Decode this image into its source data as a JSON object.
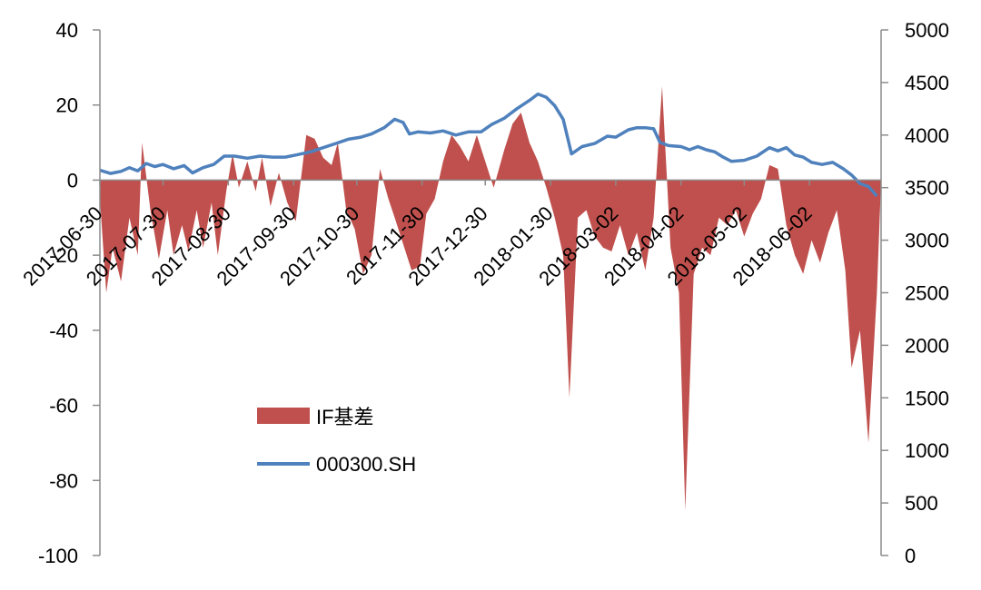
{
  "chart_data": {
    "type": "area",
    "legend": [
      {
        "name": "IF基差",
        "type": "area",
        "color": "#C0504D"
      },
      {
        "name": "000300.SH",
        "type": "line",
        "color": "#4F81BD"
      }
    ],
    "legend_position": "center-left inside plot",
    "y_left": {
      "min": -100,
      "max": 40,
      "ticks": [
        "40",
        "20",
        "0",
        "-20",
        "-40",
        "-60",
        "-80",
        "-100"
      ]
    },
    "y_right": {
      "min": 0,
      "max": 5000,
      "ticks": [
        "5000",
        "4500",
        "4000",
        "3500",
        "3000",
        "2500",
        "2000",
        "1500",
        "1000",
        "500",
        "0"
      ]
    },
    "x_ticks": [
      "2017-06-30",
      "2017-07-30",
      "2017-08-30",
      "2017-09-30",
      "2017-10-30",
      "2017-11-30",
      "2017-12-30",
      "2018-01-30",
      "2018-03-02",
      "2018-04-02",
      "2018-05-02",
      "2018-06-02"
    ],
    "x_range": {
      "start": "2017-06-30",
      "end": "2018-07-06"
    },
    "series": [
      {
        "name": "IF基差",
        "color": "#C0504D",
        "points": [
          [
            "2017-06-30",
            -5
          ],
          [
            "2017-07-03",
            -30
          ],
          [
            "2017-07-06",
            -18
          ],
          [
            "2017-07-10",
            -27
          ],
          [
            "2017-07-14",
            -10
          ],
          [
            "2017-07-18",
            -20
          ],
          [
            "2017-07-20",
            10
          ],
          [
            "2017-07-24",
            -8
          ],
          [
            "2017-07-28",
            -21
          ],
          [
            "2017-08-01",
            -8
          ],
          [
            "2017-08-04",
            -20
          ],
          [
            "2017-08-08",
            -12
          ],
          [
            "2017-08-11",
            -19
          ],
          [
            "2017-08-15",
            -8
          ],
          [
            "2017-08-18",
            -18
          ],
          [
            "2017-08-22",
            -6
          ],
          [
            "2017-08-25",
            -20
          ],
          [
            "2017-08-29",
            -3
          ],
          [
            "2017-09-01",
            7
          ],
          [
            "2017-09-04",
            -2
          ],
          [
            "2017-09-08",
            5
          ],
          [
            "2017-09-12",
            -3
          ],
          [
            "2017-09-15",
            6
          ],
          [
            "2017-09-19",
            -7
          ],
          [
            "2017-09-23",
            2
          ],
          [
            "2017-09-27",
            -6
          ],
          [
            "2017-10-01",
            -11
          ],
          [
            "2017-10-06",
            12
          ],
          [
            "2017-10-10",
            11
          ],
          [
            "2017-10-14",
            6
          ],
          [
            "2017-10-18",
            4
          ],
          [
            "2017-10-21",
            10
          ],
          [
            "2017-10-25",
            -8
          ],
          [
            "2017-10-29",
            -13
          ],
          [
            "2017-11-02",
            -25
          ],
          [
            "2017-11-06",
            -20
          ],
          [
            "2017-11-10",
            3
          ],
          [
            "2017-11-14",
            -5
          ],
          [
            "2017-11-17",
            -10
          ],
          [
            "2017-11-21",
            -17
          ],
          [
            "2017-11-25",
            -24
          ],
          [
            "2017-11-29",
            -23
          ],
          [
            "2017-12-02",
            -9
          ],
          [
            "2017-12-06",
            -5
          ],
          [
            "2017-12-10",
            5
          ],
          [
            "2017-12-14",
            12
          ],
          [
            "2017-12-18",
            9
          ],
          [
            "2017-12-22",
            5
          ],
          [
            "2017-12-26",
            12
          ],
          [
            "2017-12-30",
            5
          ],
          [
            "2018-01-03",
            -2
          ],
          [
            "2018-01-08",
            8
          ],
          [
            "2018-01-12",
            15
          ],
          [
            "2018-01-16",
            18
          ],
          [
            "2018-01-20",
            10
          ],
          [
            "2018-01-24",
            5
          ],
          [
            "2018-01-28",
            -2
          ],
          [
            "2018-02-01",
            -10
          ],
          [
            "2018-02-05",
            -20
          ],
          [
            "2018-02-08",
            -58
          ],
          [
            "2018-02-12",
            -10
          ],
          [
            "2018-02-16",
            -8
          ],
          [
            "2018-02-20",
            -15
          ],
          [
            "2018-02-24",
            -18
          ],
          [
            "2018-02-28",
            -19
          ],
          [
            "2018-03-04",
            -12
          ],
          [
            "2018-03-08",
            -20
          ],
          [
            "2018-03-12",
            -14
          ],
          [
            "2018-03-16",
            -24
          ],
          [
            "2018-03-20",
            -10
          ],
          [
            "2018-03-24",
            25
          ],
          [
            "2018-03-28",
            -18
          ],
          [
            "2018-04-01",
            -30
          ],
          [
            "2018-04-04",
            -88
          ],
          [
            "2018-04-08",
            -25
          ],
          [
            "2018-04-12",
            -18
          ],
          [
            "2018-04-16",
            -20
          ],
          [
            "2018-04-20",
            -10
          ],
          [
            "2018-04-24",
            -12
          ],
          [
            "2018-04-28",
            -8
          ],
          [
            "2018-05-02",
            -15
          ],
          [
            "2018-05-06",
            -9
          ],
          [
            "2018-05-10",
            -5
          ],
          [
            "2018-05-14",
            4
          ],
          [
            "2018-05-18",
            3
          ],
          [
            "2018-05-22",
            -12
          ],
          [
            "2018-05-26",
            -20
          ],
          [
            "2018-05-30",
            -25
          ],
          [
            "2018-06-03",
            -16
          ],
          [
            "2018-06-07",
            -22
          ],
          [
            "2018-06-11",
            -14
          ],
          [
            "2018-06-15",
            -8
          ],
          [
            "2018-06-19",
            -24
          ],
          [
            "2018-06-22",
            -50
          ],
          [
            "2018-06-26",
            -40
          ],
          [
            "2018-06-30",
            -70
          ],
          [
            "2018-07-04",
            -30
          ],
          [
            "2018-07-06",
            0
          ]
        ]
      },
      {
        "name": "000300.SH",
        "color": "#4F81BD",
        "points": [
          [
            "2017-06-30",
            3665
          ],
          [
            "2017-07-05",
            3635
          ],
          [
            "2017-07-10",
            3655
          ],
          [
            "2017-07-14",
            3690
          ],
          [
            "2017-07-18",
            3660
          ],
          [
            "2017-07-22",
            3730
          ],
          [
            "2017-07-26",
            3700
          ],
          [
            "2017-07-30",
            3720
          ],
          [
            "2017-08-04",
            3680
          ],
          [
            "2017-08-09",
            3710
          ],
          [
            "2017-08-13",
            3640
          ],
          [
            "2017-08-18",
            3690
          ],
          [
            "2017-08-23",
            3720
          ],
          [
            "2017-08-28",
            3800
          ],
          [
            "2017-09-02",
            3800
          ],
          [
            "2017-09-08",
            3780
          ],
          [
            "2017-09-14",
            3800
          ],
          [
            "2017-09-20",
            3790
          ],
          [
            "2017-09-26",
            3790
          ],
          [
            "2017-10-01",
            3810
          ],
          [
            "2017-10-08",
            3840
          ],
          [
            "2017-10-14",
            3880
          ],
          [
            "2017-10-20",
            3920
          ],
          [
            "2017-10-26",
            3960
          ],
          [
            "2017-11-01",
            3980
          ],
          [
            "2017-11-06",
            4010
          ],
          [
            "2017-11-12",
            4070
          ],
          [
            "2017-11-17",
            4150
          ],
          [
            "2017-11-21",
            4120
          ],
          [
            "2017-11-24",
            4010
          ],
          [
            "2017-11-28",
            4030
          ],
          [
            "2017-12-04",
            4020
          ],
          [
            "2017-12-10",
            4040
          ],
          [
            "2017-12-16",
            4000
          ],
          [
            "2017-12-22",
            4030
          ],
          [
            "2017-12-28",
            4030
          ],
          [
            "2018-01-02",
            4100
          ],
          [
            "2018-01-08",
            4160
          ],
          [
            "2018-01-14",
            4250
          ],
          [
            "2018-01-20",
            4330
          ],
          [
            "2018-01-24",
            4390
          ],
          [
            "2018-01-28",
            4360
          ],
          [
            "2018-02-01",
            4280
          ],
          [
            "2018-02-05",
            4150
          ],
          [
            "2018-02-09",
            3820
          ],
          [
            "2018-02-14",
            3890
          ],
          [
            "2018-02-20",
            3920
          ],
          [
            "2018-02-26",
            3990
          ],
          [
            "2018-03-02",
            3980
          ],
          [
            "2018-03-08",
            4050
          ],
          [
            "2018-03-12",
            4070
          ],
          [
            "2018-03-16",
            4070
          ],
          [
            "2018-03-20",
            4060
          ],
          [
            "2018-03-23",
            3930
          ],
          [
            "2018-03-27",
            3900
          ],
          [
            "2018-04-02",
            3890
          ],
          [
            "2018-04-06",
            3860
          ],
          [
            "2018-04-10",
            3890
          ],
          [
            "2018-04-14",
            3860
          ],
          [
            "2018-04-18",
            3840
          ],
          [
            "2018-04-22",
            3790
          ],
          [
            "2018-04-26",
            3750
          ],
          [
            "2018-05-02",
            3760
          ],
          [
            "2018-05-08",
            3800
          ],
          [
            "2018-05-14",
            3880
          ],
          [
            "2018-05-18",
            3850
          ],
          [
            "2018-05-22",
            3880
          ],
          [
            "2018-05-26",
            3810
          ],
          [
            "2018-05-30",
            3790
          ],
          [
            "2018-06-03",
            3740
          ],
          [
            "2018-06-08",
            3720
          ],
          [
            "2018-06-13",
            3740
          ],
          [
            "2018-06-18",
            3680
          ],
          [
            "2018-06-22",
            3620
          ],
          [
            "2018-06-26",
            3540
          ],
          [
            "2018-06-30",
            3510
          ],
          [
            "2018-07-04",
            3420
          ]
        ]
      }
    ]
  }
}
